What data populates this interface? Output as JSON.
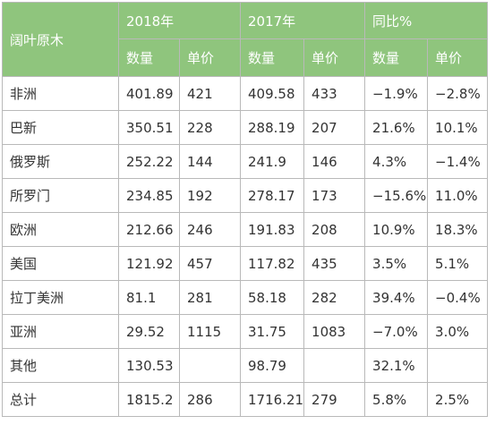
{
  "table": {
    "corner_label": "阔叶原木",
    "groups": [
      {
        "label": "2018年",
        "sub": [
          "数量",
          "单价"
        ]
      },
      {
        "label": "2017年",
        "sub": [
          "数量",
          "单价"
        ]
      },
      {
        "label": "同比%",
        "sub": [
          "数量",
          "单价"
        ]
      }
    ],
    "rows": [
      {
        "region": "非洲",
        "cells": [
          "401.89",
          "421",
          "409.58",
          "433",
          "−1.9%",
          "−2.8%"
        ]
      },
      {
        "region": "巴新",
        "cells": [
          "350.51",
          "228",
          "288.19",
          "207",
          "21.6%",
          "10.1%"
        ]
      },
      {
        "region": "俄罗斯",
        "cells": [
          "252.22",
          "144",
          "241.9",
          "146",
          "4.3%",
          "−1.4%"
        ]
      },
      {
        "region": "所罗门",
        "cells": [
          "234.85",
          "192",
          "278.17",
          "173",
          "−15.6%",
          "11.0%"
        ]
      },
      {
        "region": "欧洲",
        "cells": [
          "212.66",
          "246",
          "191.83",
          "208",
          "10.9%",
          "18.3%"
        ]
      },
      {
        "region": "美国",
        "cells": [
          "121.92",
          "457",
          "117.82",
          "435",
          "3.5%",
          "5.1%"
        ]
      },
      {
        "region": "拉丁美洲",
        "cells": [
          "81.1",
          "281",
          "58.18",
          "282",
          "39.4%",
          "−0.4%"
        ]
      },
      {
        "region": "亚洲",
        "cells": [
          "29.52",
          "1115",
          "31.75",
          "1083",
          "−7.0%",
          "3.0%"
        ]
      },
      {
        "region": "其他",
        "cells": [
          "130.53",
          "",
          "98.79",
          "",
          "32.1%",
          ""
        ]
      },
      {
        "region": "总计",
        "cells": [
          "1815.2",
          "286",
          "1716.21",
          "279",
          "5.8%",
          "2.5%"
        ]
      }
    ]
  },
  "colors": {
    "header_bg": "#8fc57d",
    "header_text": "#ffffff",
    "border": "#b9b9b9",
    "body_text": "#333333"
  }
}
